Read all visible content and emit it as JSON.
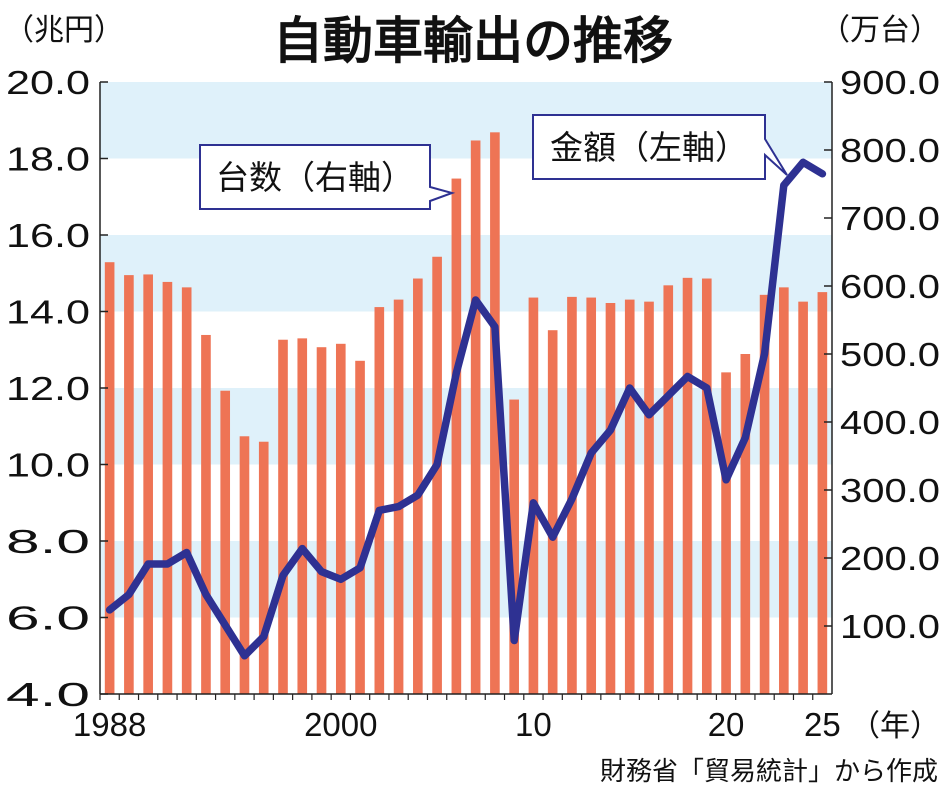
{
  "chart_data": {
    "type": "bar+line",
    "title": "自動車輸出の推移",
    "left_unit": "（兆円）",
    "right_unit": "（万台）",
    "x_years": [
      1988,
      1989,
      1990,
      1991,
      1992,
      1993,
      1994,
      1995,
      1996,
      1997,
      1998,
      1999,
      2000,
      2001,
      2002,
      2003,
      2004,
      2005,
      2006,
      2007,
      2008,
      2009,
      2010,
      2011,
      2012,
      2013,
      2014,
      2015,
      2016,
      2017,
      2018,
      2019,
      2020,
      2021,
      2022,
      2023,
      2024,
      2025
    ],
    "x_tick_labels": [
      {
        "year": 1988,
        "label": "1988"
      },
      {
        "year": 2000,
        "label": "2000"
      },
      {
        "year": 2010,
        "label": "10"
      },
      {
        "year": 2020,
        "label": "20"
      },
      {
        "year": 2025,
        "label": "25"
      }
    ],
    "x_unit": "（年）",
    "left_axis": {
      "min": 4.0,
      "max": 20.0,
      "ticks": [
        "4.0",
        "6.0",
        "8.0",
        "10.0",
        "12.0",
        "14.0",
        "16.0",
        "18.0",
        "20.0"
      ]
    },
    "right_axis": {
      "min": 0,
      "max": 900,
      "ticks": [
        "100.0",
        "200.0",
        "300.0",
        "400.0",
        "500.0",
        "600.0",
        "700.0",
        "800.0",
        "900.0"
      ]
    },
    "series": [
      {
        "name": "台数（右軸）",
        "type": "bar",
        "axis": "right",
        "color": "#ee7455",
        "values": [
          635,
          616,
          617,
          606,
          598,
          528,
          446,
          379,
          371,
          521,
          523,
          510,
          515,
          490,
          569,
          580,
          611,
          643,
          758,
          814,
          826,
          433,
          583,
          535,
          584,
          583,
          575,
          580,
          577,
          601,
          612,
          611,
          473,
          500,
          587,
          598,
          577,
          591
        ]
      },
      {
        "name": "金額（左軸）",
        "type": "line",
        "axis": "left",
        "color": "#2e3192",
        "values": [
          6.2,
          6.6,
          7.4,
          7.4,
          7.7,
          6.6,
          5.8,
          5.0,
          5.5,
          7.1,
          7.8,
          7.2,
          7.0,
          7.3,
          8.8,
          8.9,
          9.2,
          10.0,
          12.4,
          14.3,
          13.6,
          5.4,
          9.0,
          8.1,
          9.1,
          10.3,
          10.9,
          12.0,
          11.3,
          11.8,
          12.3,
          12.0,
          9.6,
          10.7,
          12.9,
          17.3,
          17.9,
          17.6
        ]
      }
    ],
    "annotations": [
      {
        "text": "台数（右軸）",
        "points_to": "bars"
      },
      {
        "text": "金額（左軸）",
        "points_to": "line"
      }
    ],
    "source_note": "財務省「貿易統計」から作成"
  }
}
